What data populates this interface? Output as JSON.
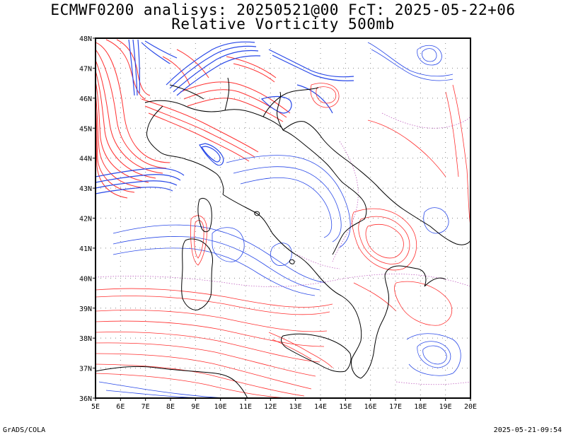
{
  "title_line1": "ECMWF0200 analisys: 20250521@00 FcT: 2025-05-22+06",
  "title_line2": "Relative Vorticity 500mb",
  "footer_left": "GrADS/COLA",
  "footer_right": "2025-05-21-09:54",
  "map": {
    "lon_range": [
      5,
      20
    ],
    "lat_range": [
      36,
      48
    ],
    "lon_labels": [
      "5E",
      "6E",
      "7E",
      "8E",
      "9E",
      "10E",
      "11E",
      "12E",
      "13E",
      "14E",
      "15E",
      "16E",
      "17E",
      "18E",
      "19E",
      "20E"
    ],
    "lat_labels": [
      "36N",
      "37N",
      "38N",
      "39N",
      "40N",
      "41N",
      "42N",
      "43N",
      "44N",
      "45N",
      "46N",
      "47N",
      "48N"
    ],
    "gridlines": "dotted",
    "colors": {
      "positive": "#ff3030",
      "negative": "#2848e8",
      "zero": "#c060c0",
      "coastline": "#000000"
    }
  }
}
